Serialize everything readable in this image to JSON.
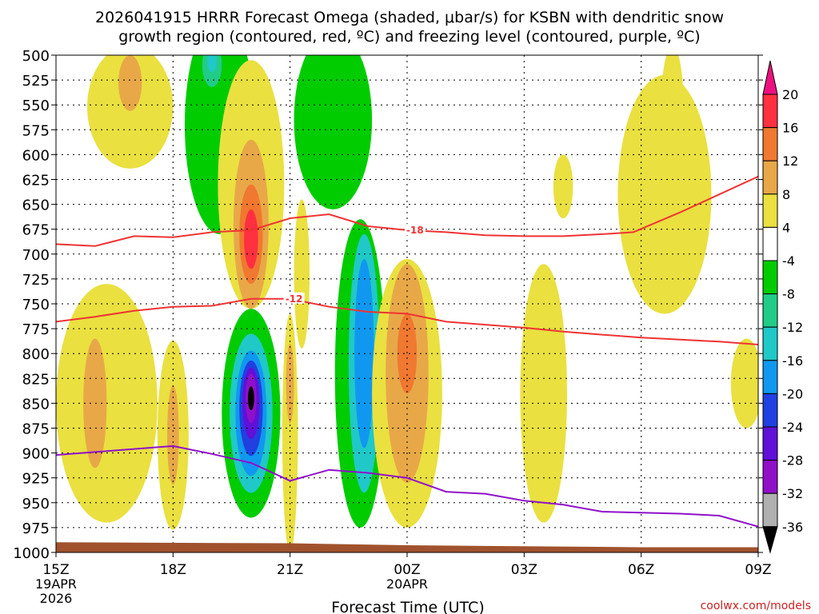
{
  "chart_data": {
    "type": "heatmap",
    "title_line1": "2026041915 HRRR Forecast Omega (shaded, μbar/s) for KSBN with dendritic snow",
    "title_line2": "growth region (contoured, red, ºC) and freezing level (contoured, purple, ºC)",
    "xlabel": "Forecast Time (UTC)",
    "watermark": "coolwx.com/models",
    "y_ticks": [
      500,
      525,
      550,
      575,
      600,
      625,
      650,
      675,
      700,
      725,
      750,
      775,
      800,
      825,
      850,
      875,
      900,
      925,
      950,
      975,
      1000
    ],
    "x_ticks": [
      {
        "h": 0,
        "label": "15Z",
        "sub1": "19APR",
        "sub2": "2026"
      },
      {
        "h": 3,
        "label": "18Z",
        "sub1": "",
        "sub2": ""
      },
      {
        "h": 6,
        "label": "21Z",
        "sub1": "",
        "sub2": ""
      },
      {
        "h": 9,
        "label": "00Z",
        "sub1": "20APR",
        "sub2": ""
      },
      {
        "h": 12,
        "label": "03Z",
        "sub1": "",
        "sub2": ""
      },
      {
        "h": 15,
        "label": "06Z",
        "sub1": "",
        "sub2": ""
      },
      {
        "h": 18,
        "label": "09Z",
        "sub1": "",
        "sub2": ""
      }
    ],
    "xlim": [
      0,
      18
    ],
    "ylim": [
      500,
      1000
    ],
    "colorbar": {
      "labels": [
        "20",
        "16",
        "12",
        "8",
        "4",
        "-4",
        "-8",
        "-12",
        "-16",
        "-20",
        "-24",
        "-28",
        "-32",
        "-36"
      ],
      "colors": [
        "#ff3040",
        "#f07830",
        "#e8a848",
        "#eae040",
        "#ffffff",
        "#00cc00",
        "#20cc88",
        "#20c8c8",
        "#1098f0",
        "#2040e0",
        "#6010d8",
        "#9010c8",
        "#b0b0b0"
      ],
      "top_color": "#ee1080",
      "bottom_color": "#000000"
    },
    "dgz_contours": [
      {
        "label": "-18",
        "label_h": 9.1,
        "points": [
          [
            0,
            690
          ],
          [
            1,
            692
          ],
          [
            2,
            682
          ],
          [
            3,
            683
          ],
          [
            4,
            678
          ],
          [
            5,
            676
          ],
          [
            6,
            664
          ],
          [
            7,
            660
          ],
          [
            8,
            672
          ],
          [
            9,
            676
          ],
          [
            10,
            678
          ],
          [
            11,
            681
          ],
          [
            12,
            682
          ],
          [
            13,
            682
          ],
          [
            14,
            680
          ],
          [
            14.8,
            678
          ],
          [
            16,
            658
          ],
          [
            17,
            640
          ],
          [
            18,
            622
          ]
        ]
      },
      {
        "label": "-12",
        "label_h": 6.0,
        "points": [
          [
            0,
            768
          ],
          [
            1,
            763
          ],
          [
            2,
            757
          ],
          [
            3,
            753
          ],
          [
            4,
            752
          ],
          [
            5,
            745
          ],
          [
            6,
            745
          ],
          [
            7,
            753
          ],
          [
            8,
            758
          ],
          [
            9,
            760
          ],
          [
            10,
            768
          ],
          [
            11,
            771
          ],
          [
            12,
            774
          ],
          [
            13,
            778
          ],
          [
            14,
            781
          ],
          [
            15,
            784
          ],
          [
            16,
            786
          ],
          [
            17,
            788
          ],
          [
            18,
            791
          ]
        ]
      }
    ],
    "freezing_level": {
      "color": "#9010c8",
      "points": [
        [
          0,
          902
        ],
        [
          1,
          899
        ],
        [
          2,
          896
        ],
        [
          3,
          893
        ],
        [
          4,
          901
        ],
        [
          5,
          910
        ],
        [
          6,
          928
        ],
        [
          7,
          917
        ],
        [
          8,
          920
        ],
        [
          9,
          925
        ],
        [
          10,
          939
        ],
        [
          11,
          941
        ],
        [
          12,
          948
        ],
        [
          13,
          952
        ],
        [
          14,
          959
        ],
        [
          15,
          960
        ],
        [
          16,
          961
        ],
        [
          17,
          963
        ],
        [
          18,
          974
        ]
      ]
    },
    "terrain": {
      "color": "#a0522d",
      "top_pressure": 993
    },
    "omega_features": [
      {
        "cx": 1.9,
        "cy": 552,
        "rx": 1.1,
        "ry": 62,
        "value": 6
      },
      {
        "cx": 1.9,
        "cy": 528,
        "rx": 0.3,
        "ry": 28,
        "value": 9
      },
      {
        "cx": 1.9,
        "cy": 528,
        "rx": 0.15,
        "ry": 15,
        "value": 11
      },
      {
        "cx": 4.2,
        "cy": 570,
        "rx": 0.9,
        "ry": 110,
        "value": -6
      },
      {
        "cx": 4.0,
        "cy": 510,
        "rx": 0.25,
        "ry": 22,
        "value": -10
      },
      {
        "cx": 4.0,
        "cy": 505,
        "rx": 0.12,
        "ry": 12,
        "value": -13
      },
      {
        "cx": 5.0,
        "cy": 630,
        "rx": 0.85,
        "ry": 125,
        "value": 5
      },
      {
        "cx": 5.0,
        "cy": 670,
        "rx": 0.45,
        "ry": 85,
        "value": 9
      },
      {
        "cx": 5.0,
        "cy": 680,
        "rx": 0.3,
        "ry": 50,
        "value": 13
      },
      {
        "cx": 5.0,
        "cy": 685,
        "rx": 0.18,
        "ry": 30,
        "value": 18
      },
      {
        "cx": 7.1,
        "cy": 565,
        "rx": 1.0,
        "ry": 90,
        "value": -6
      },
      {
        "cx": 6.3,
        "cy": 720,
        "rx": 0.2,
        "ry": 75,
        "value": 5
      },
      {
        "cx": 6.0,
        "cy": 880,
        "rx": 0.2,
        "ry": 120,
        "value": 5
      },
      {
        "cx": 6.0,
        "cy": 830,
        "rx": 0.1,
        "ry": 40,
        "value": 9
      },
      {
        "cx": 1.3,
        "cy": 850,
        "rx": 1.3,
        "ry": 120,
        "value": 5
      },
      {
        "cx": 1.0,
        "cy": 850,
        "rx": 0.3,
        "ry": 65,
        "value": 9
      },
      {
        "cx": 3.0,
        "cy": 882,
        "rx": 0.4,
        "ry": 95,
        "value": 5
      },
      {
        "cx": 3.0,
        "cy": 882,
        "rx": 0.15,
        "ry": 50,
        "value": 9
      },
      {
        "cx": 5.0,
        "cy": 860,
        "rx": 0.75,
        "ry": 105,
        "value": -6
      },
      {
        "cx": 5.0,
        "cy": 860,
        "rx": 0.55,
        "ry": 80,
        "value": -14
      },
      {
        "cx": 5.0,
        "cy": 860,
        "rx": 0.4,
        "ry": 63,
        "value": -18
      },
      {
        "cx": 5.0,
        "cy": 855,
        "rx": 0.3,
        "ry": 48,
        "value": -22
      },
      {
        "cx": 5.0,
        "cy": 850,
        "rx": 0.22,
        "ry": 36,
        "value": -26
      },
      {
        "cx": 5.0,
        "cy": 845,
        "rx": 0.14,
        "ry": 25,
        "value": -30
      },
      {
        "cx": 5.0,
        "cy": 845,
        "rx": 0.08,
        "ry": 12,
        "value": -40
      },
      {
        "cx": 7.8,
        "cy": 820,
        "rx": 0.65,
        "ry": 155,
        "value": -6
      },
      {
        "cx": 7.9,
        "cy": 810,
        "rx": 0.4,
        "ry": 130,
        "value": -12
      },
      {
        "cx": 7.9,
        "cy": 800,
        "rx": 0.25,
        "ry": 95,
        "value": -17
      },
      {
        "cx": 9.0,
        "cy": 840,
        "rx": 0.9,
        "ry": 135,
        "value": 5
      },
      {
        "cx": 9.0,
        "cy": 820,
        "rx": 0.55,
        "ry": 110,
        "value": 9
      },
      {
        "cx": 9.0,
        "cy": 800,
        "rx": 0.25,
        "ry": 40,
        "value": 13
      },
      {
        "cx": 12.5,
        "cy": 840,
        "rx": 0.6,
        "ry": 130,
        "value": 5
      },
      {
        "cx": 15.6,
        "cy": 640,
        "rx": 1.2,
        "ry": 120,
        "value": 5
      },
      {
        "cx": 15.8,
        "cy": 560,
        "rx": 0.3,
        "ry": 70,
        "value": 5
      },
      {
        "cx": 13.0,
        "cy": 632,
        "rx": 0.25,
        "ry": 32,
        "value": 5
      },
      {
        "cx": 17.7,
        "cy": 830,
        "rx": 0.4,
        "ry": 45,
        "value": 5
      }
    ]
  }
}
